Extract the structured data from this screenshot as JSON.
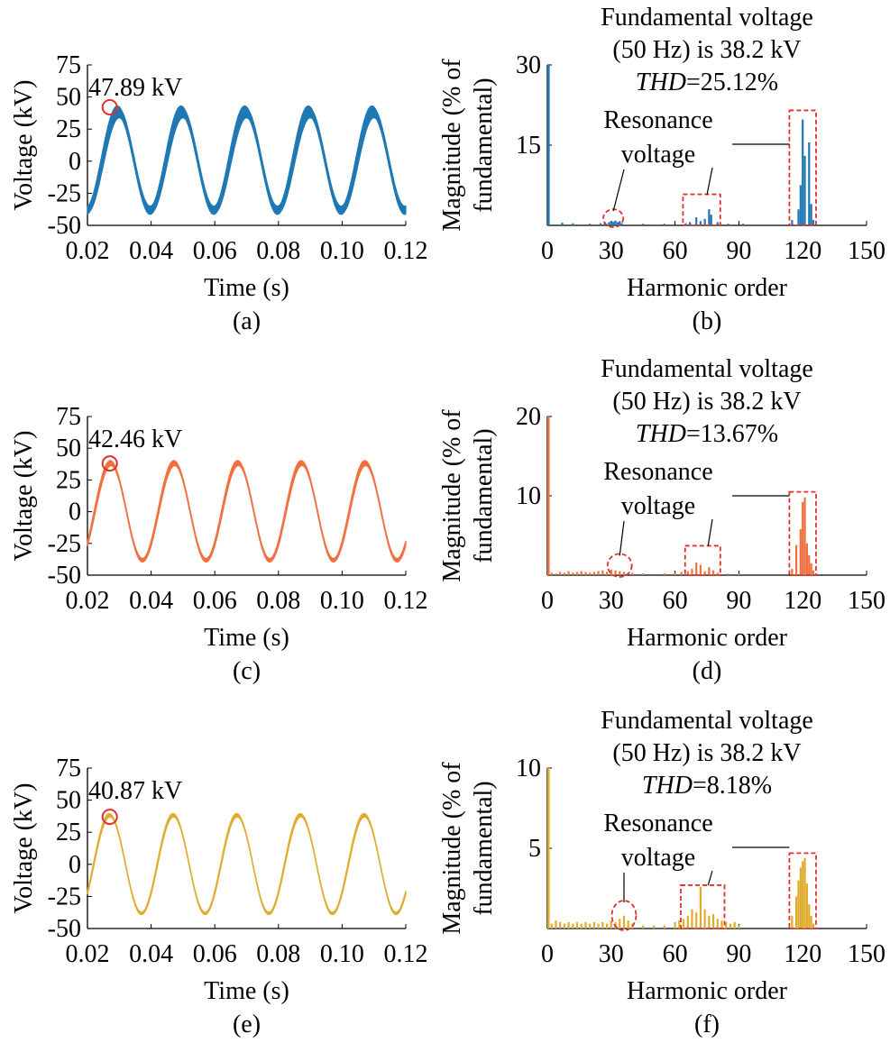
{
  "colors": {
    "series_a": "#1f77b4",
    "series_c": "#f0703f",
    "series_e": "#e0ac2e",
    "highlight": "#e0302b",
    "axis": "#000000"
  },
  "chart_data": [
    {
      "id": "a",
      "type": "line",
      "panel_label": "(a)",
      "xlabel": "Time (s)",
      "ylabel": "Voltage (kV)",
      "xlim": [
        0.02,
        0.12
      ],
      "ylim": [
        -50,
        75
      ],
      "x_ticks": [
        "0.02",
        "0.04",
        "0.06",
        "0.08",
        "0.10",
        "0.12"
      ],
      "y_ticks": [
        "75",
        "50",
        "25",
        "0",
        "-25",
        "-50"
      ],
      "grid": false,
      "color": "#1f77b4",
      "frequency_hz": 50,
      "amplitude_kv": 38.2,
      "ripple_kv": 7,
      "series": [
        {
          "x_start": 0.02,
          "x_end": 0.12,
          "y_at_start": -38,
          "y_at_end": -38,
          "peak_y": 47.89
        }
      ],
      "annotation": {
        "text": "47.89 kV",
        "x": 0.027,
        "y": 42
      }
    },
    {
      "id": "b",
      "type": "bar",
      "panel_label": "(b)",
      "xlabel": "Harmonic order",
      "ylabel": "Magnitude (% of fundamental)",
      "ylabel_lines": [
        "Magnitude (% of",
        "fundamental)"
      ],
      "xlim": [
        0,
        150
      ],
      "ylim": [
        0,
        30
      ],
      "x_ticks": [
        "0",
        "30",
        "60",
        "90",
        "120",
        "150"
      ],
      "y_ticks": [
        "30",
        "15"
      ],
      "grid": false,
      "color": "#1f77b4",
      "title_lines": [
        "Fundamental voltage",
        "(50 Hz) is 38.2 kV"
      ],
      "thd_label": "THD",
      "thd_value": "=25.12%",
      "resonance_label": [
        "Resonance",
        "voltage"
      ],
      "series": [
        {
          "harmonics": [
            0,
            7,
            12,
            20,
            25,
            27,
            29,
            30,
            31,
            32,
            33,
            34,
            35,
            45,
            55,
            65,
            67,
            70,
            72,
            74,
            76,
            77,
            80,
            85,
            92,
            115,
            118,
            119,
            120,
            121,
            123,
            124,
            125
          ],
          "values": [
            30,
            0.5,
            0.4,
            0.3,
            0.4,
            0.5,
            0.6,
            0.8,
            0.7,
            0.9,
            0.6,
            0.8,
            0.4,
            0.3,
            0.3,
            0.4,
            0.6,
            1.5,
            0.8,
            1.2,
            3.0,
            2.0,
            0.6,
            0.3,
            0.3,
            1.0,
            3.0,
            7.5,
            19.8,
            13.0,
            15.5,
            4.0,
            1.0
          ]
        }
      ],
      "highlight_regions": [
        {
          "shape": "ellipse",
          "x_range": [
            28,
            34
          ],
          "y_range": [
            0,
            2
          ]
        },
        {
          "shape": "rect",
          "x_range": [
            65,
            80
          ],
          "y_range": [
            0,
            5.8
          ]
        },
        {
          "shape": "rect",
          "x_range": [
            115,
            125
          ],
          "y_range": [
            0,
            21.5
          ]
        }
      ]
    },
    {
      "id": "c",
      "type": "line",
      "panel_label": "(c)",
      "xlabel": "Time (s)",
      "ylabel": "Voltage (kV)",
      "xlim": [
        0.02,
        0.12
      ],
      "ylim": [
        -50,
        75
      ],
      "x_ticks": [
        "0.02",
        "0.04",
        "0.06",
        "0.08",
        "0.10",
        "0.12"
      ],
      "y_ticks": [
        "75",
        "50",
        "25",
        "0",
        "-25",
        "-50"
      ],
      "grid": false,
      "color": "#f0703f",
      "frequency_hz": 50,
      "amplitude_kv": 38.2,
      "ripple_kv": 3,
      "series": [
        {
          "x_start": 0.02,
          "x_end": 0.12,
          "y_at_start": -25,
          "y_at_end": -25,
          "peak_y": 42.46
        }
      ],
      "annotation": {
        "text": "42.46 kV",
        "x": 0.027,
        "y": 38
      }
    },
    {
      "id": "d",
      "type": "bar",
      "panel_label": "(d)",
      "xlabel": "Harmonic order",
      "ylabel": "Magnitude (% of fundamental)",
      "ylabel_lines": [
        "Magnitude (% of",
        "fundamental)"
      ],
      "xlim": [
        0,
        150
      ],
      "ylim": [
        0,
        20
      ],
      "x_ticks": [
        "0",
        "30",
        "60",
        "90",
        "120",
        "150"
      ],
      "y_ticks": [
        "20",
        "10"
      ],
      "grid": false,
      "color": "#f0703f",
      "title_lines": [
        "Fundamental voltage",
        "(50 Hz) is 38.2 kV"
      ],
      "thd_label": "THD",
      "thd_value": "=13.67%",
      "resonance_label": [
        "Resonance",
        "voltage"
      ],
      "series": [
        {
          "harmonics": [
            0,
            2,
            4,
            6,
            8,
            10,
            12,
            14,
            16,
            18,
            20,
            22,
            24,
            26,
            28,
            30,
            32,
            34,
            36,
            40,
            45,
            55,
            60,
            63,
            66,
            68,
            70,
            72,
            74,
            76,
            78,
            80,
            85,
            90,
            115,
            117,
            119,
            120,
            121,
            122,
            123,
            124,
            125
          ],
          "values": [
            20,
            0.3,
            0.2,
            0.4,
            0.3,
            0.5,
            0.3,
            0.4,
            0.5,
            0.4,
            0.3,
            0.4,
            0.5,
            0.6,
            0.4,
            0.7,
            0.6,
            0.5,
            0.4,
            0.3,
            0.2,
            0.2,
            0.3,
            0.4,
            0.5,
            0.8,
            1.6,
            1.3,
            0.5,
            1.0,
            0.6,
            0.3,
            0.2,
            0.2,
            0.8,
            3.8,
            5.8,
            9.2,
            9.8,
            4.0,
            2.5,
            1.5,
            0.6
          ]
        }
      ],
      "highlight_regions": [
        {
          "shape": "ellipse",
          "x_range": [
            30,
            38
          ],
          "y_range": [
            0,
            2
          ]
        },
        {
          "shape": "rect",
          "x_range": [
            66,
            80
          ],
          "y_range": [
            0,
            3.7
          ]
        },
        {
          "shape": "rect",
          "x_range": [
            115,
            125
          ],
          "y_range": [
            0,
            10.5
          ]
        }
      ]
    },
    {
      "id": "e",
      "type": "line",
      "panel_label": "(e)",
      "xlabel": "Time (s)",
      "ylabel": "Voltage (kV)",
      "xlim": [
        0.02,
        0.12
      ],
      "ylim": [
        -50,
        75
      ],
      "x_ticks": [
        "0.02",
        "0.04",
        "0.06",
        "0.08",
        "0.10",
        "0.12"
      ],
      "y_ticks": [
        "75",
        "50",
        "25",
        "0",
        "-25",
        "-50"
      ],
      "grid": false,
      "color": "#e0ac2e",
      "frequency_hz": 50,
      "amplitude_kv": 38.2,
      "ripple_kv": 2,
      "series": [
        {
          "x_start": 0.02,
          "x_end": 0.12,
          "y_at_start": -22,
          "y_at_end": -22,
          "peak_y": 40.87
        }
      ],
      "annotation": {
        "text": "40.87 kV",
        "x": 0.027,
        "y": 37
      }
    },
    {
      "id": "f",
      "type": "bar",
      "panel_label": "(f)",
      "xlabel": "Harmonic order",
      "ylabel": "Magnitude (% of fundamental)",
      "ylabel_lines": [
        "Magnitude (% of",
        "fundamental)"
      ],
      "xlim": [
        0,
        150
      ],
      "ylim": [
        0,
        10
      ],
      "x_ticks": [
        "0",
        "30",
        "60",
        "90",
        "120",
        "150"
      ],
      "y_ticks": [
        "10",
        "5"
      ],
      "grid": false,
      "color": "#e0ac2e",
      "title_lines": [
        "Fundamental voltage",
        "(50 Hz) is 38.2 kV"
      ],
      "thd_label": "THD",
      "thd_value": "=8.18%",
      "resonance_label": [
        "Resonance",
        "voltage"
      ],
      "series": [
        {
          "harmonics": [
            0,
            2,
            4,
            6,
            8,
            10,
            12,
            14,
            16,
            18,
            20,
            22,
            24,
            26,
            28,
            30,
            32,
            34,
            36,
            38,
            40,
            45,
            50,
            55,
            60,
            62,
            64,
            66,
            68,
            70,
            72,
            74,
            76,
            78,
            80,
            82,
            84,
            86,
            88,
            90,
            115,
            117,
            118,
            119,
            120,
            121,
            122,
            123,
            124,
            125
          ],
          "values": [
            10,
            0.3,
            0.5,
            0.4,
            0.3,
            0.4,
            0.3,
            0.4,
            0.3,
            0.4,
            0.3,
            0.4,
            0.3,
            0.4,
            0.3,
            0.5,
            0.4,
            0.6,
            0.8,
            0.5,
            0.3,
            0.2,
            0.2,
            0.2,
            0.4,
            0.5,
            0.6,
            0.8,
            1.2,
            1.0,
            2.6,
            1.2,
            0.8,
            0.9,
            0.6,
            0.5,
            0.4,
            0.3,
            0.4,
            0.2,
            0.8,
            2.0,
            3.0,
            3.8,
            4.2,
            4.4,
            2.8,
            1.5,
            0.8,
            0.3
          ]
        }
      ],
      "highlight_regions": [
        {
          "shape": "ellipse",
          "x_range": [
            32,
            40
          ],
          "y_range": [
            0,
            1.4
          ]
        },
        {
          "shape": "rect",
          "x_range": [
            64,
            82
          ],
          "y_range": [
            0,
            2.7
          ]
        },
        {
          "shape": "rect",
          "x_range": [
            115,
            125
          ],
          "y_range": [
            0,
            4.7
          ]
        }
      ]
    }
  ]
}
